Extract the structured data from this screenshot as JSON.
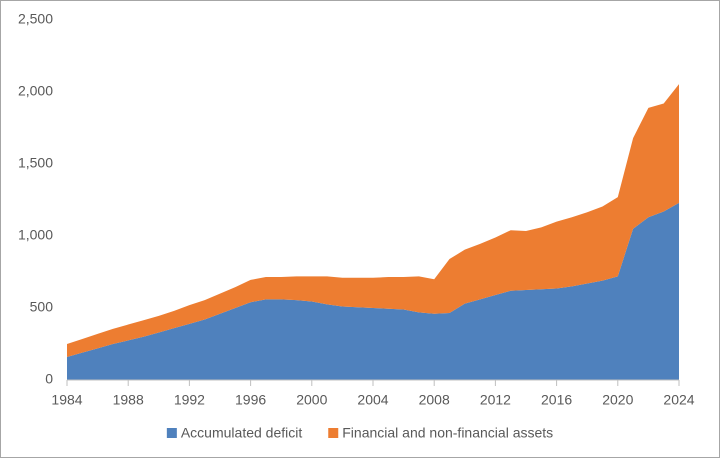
{
  "chart_data": {
    "type": "stacked_area",
    "x": [
      1984,
      1985,
      1986,
      1987,
      1988,
      1989,
      1990,
      1991,
      1992,
      1993,
      1994,
      1995,
      1996,
      1997,
      1998,
      1999,
      2000,
      2001,
      2002,
      2003,
      2004,
      2005,
      2006,
      2007,
      2008,
      2009,
      2010,
      2011,
      2012,
      2013,
      2014,
      2015,
      2016,
      2017,
      2018,
      2019,
      2020,
      2021,
      2022,
      2023,
      2024
    ],
    "series": [
      {
        "name": "Accumulated deficit",
        "color": "#4f81bd",
        "values": [
          160,
          190,
          220,
          250,
          275,
          300,
          330,
          360,
          390,
          420,
          460,
          500,
          540,
          560,
          560,
          555,
          545,
          525,
          510,
          505,
          500,
          495,
          490,
          470,
          460,
          465,
          530,
          560,
          590,
          620,
          625,
          630,
          635,
          650,
          670,
          690,
          720,
          1050,
          1130,
          1170,
          1230
        ]
      },
      {
        "name": "Financial and non-financial assets",
        "color": "#ed7d31",
        "values": [
          90,
          95,
          100,
          105,
          110,
          115,
          115,
          120,
          130,
          135,
          140,
          145,
          155,
          155,
          155,
          165,
          175,
          195,
          200,
          205,
          210,
          220,
          225,
          250,
          240,
          375,
          375,
          385,
          400,
          420,
          410,
          430,
          465,
          480,
          495,
          515,
          550,
          630,
          760,
          750,
          825
        ]
      }
    ],
    "xlim": [
      1984,
      2024
    ],
    "xticks": [
      1984,
      1988,
      1992,
      1996,
      2000,
      2004,
      2008,
      2012,
      2016,
      2020,
      2024
    ],
    "ylim": [
      0,
      2500
    ],
    "yticks": [
      0,
      {
        "value": 500,
        "label": "500"
      },
      {
        "value": 1000,
        "label": "1,000"
      },
      {
        "value": 1500,
        "label": "1,500"
      },
      {
        "value": 2000,
        "label": "2,000"
      },
      {
        "value": 2500,
        "label": "2,500"
      }
    ],
    "grid": false,
    "legend": "bottom"
  }
}
